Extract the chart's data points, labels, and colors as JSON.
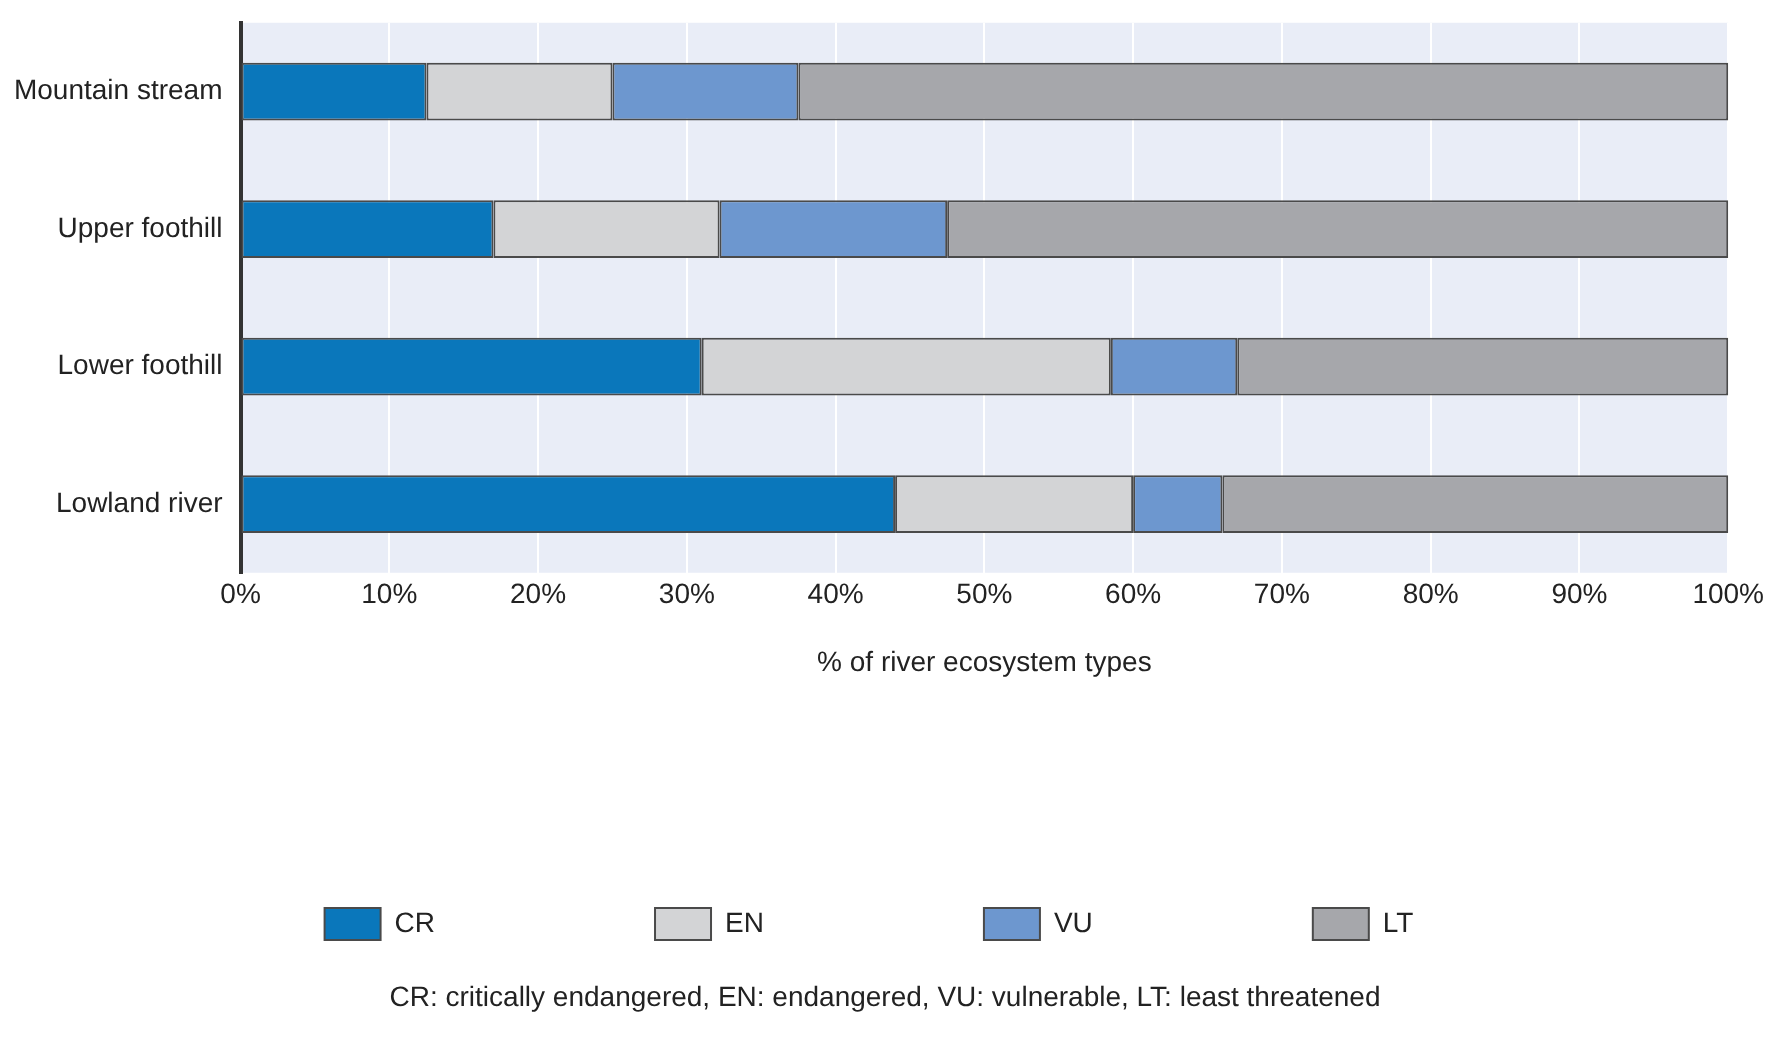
{
  "chart_data": {
    "type": "bar",
    "orientation": "horizontal",
    "stacked": true,
    "categories": [
      "Mountain stream",
      "Upper foothill",
      "Lower foothill",
      "Lowland river"
    ],
    "series": [
      {
        "name": "CR",
        "color": "#0a77bb",
        "values": [
          12.5,
          17,
          31,
          44
        ]
      },
      {
        "name": "EN",
        "color": "#d3d4d6",
        "values": [
          12.5,
          15.2,
          27.5,
          16
        ]
      },
      {
        "name": "VU",
        "color": "#6d97cf",
        "values": [
          12.5,
          15.3,
          8.5,
          6
        ]
      },
      {
        "name": "LT",
        "color": "#a6a7ab",
        "values": [
          62.5,
          52.5,
          33,
          34
        ]
      }
    ],
    "xlim": [
      0,
      100
    ],
    "xticks": [
      {
        "value": 0,
        "label": "0%"
      },
      {
        "value": 10,
        "label": "10%"
      },
      {
        "value": 20,
        "label": "20%"
      },
      {
        "value": 30,
        "label": "30%"
      },
      {
        "value": 40,
        "label": "40%"
      },
      {
        "value": 50,
        "label": "50%"
      },
      {
        "value": 60,
        "label": "60%"
      },
      {
        "value": 70,
        "label": "70%"
      },
      {
        "value": 80,
        "label": "80%"
      },
      {
        "value": 90,
        "label": "90%"
      },
      {
        "value": 100,
        "label": "100%"
      }
    ],
    "xlabel": "% of river ecosystem types",
    "grid": "x",
    "legend": "bottom",
    "annotations": [
      "CR: critically endangered, EN: endangered, VU: vulnerable, LT: least threatened"
    ]
  }
}
